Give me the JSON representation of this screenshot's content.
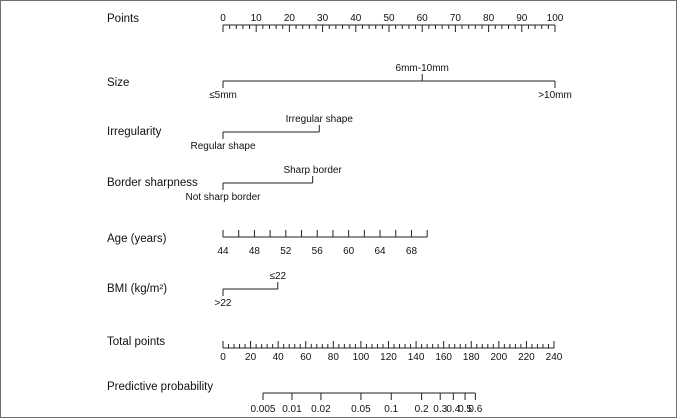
{
  "chart_data": {
    "type": "nomogram",
    "rows": [
      {
        "id": "points",
        "label": "Points",
        "kind": "scale",
        "min": 0,
        "max": 100,
        "major": [
          0,
          10,
          20,
          30,
          40,
          50,
          60,
          70,
          80,
          90,
          100
        ],
        "minor_step": 2
      },
      {
        "id": "size",
        "label": "Size",
        "kind": "categorical",
        "categories": [
          {
            "label": "≤5mm",
            "points": 0,
            "pos": "below"
          },
          {
            "label": "6mm-10mm",
            "points": 60,
            "pos": "above"
          },
          {
            "label": ">10mm",
            "points": 100,
            "pos": "below"
          }
        ]
      },
      {
        "id": "irregularity",
        "label": "Irregularity",
        "kind": "categorical",
        "categories": [
          {
            "label": "Regular shape",
            "points": 0,
            "pos": "below"
          },
          {
            "label": "Irregular shape",
            "points": 29,
            "pos": "above"
          }
        ]
      },
      {
        "id": "border",
        "label": "Border sharpness",
        "kind": "categorical",
        "categories": [
          {
            "label": "Not sharp border",
            "points": 0,
            "pos": "below"
          },
          {
            "label": "Sharp border",
            "points": 27,
            "pos": "above"
          }
        ]
      },
      {
        "id": "age",
        "label": "Age (years)",
        "kind": "scale",
        "labeled": [
          44,
          48,
          52,
          56,
          60,
          64,
          68
        ],
        "ticks_every": 2,
        "min": 44,
        "max": 70,
        "points_at_min": 0,
        "points_at_max": 61.5
      },
      {
        "id": "bmi",
        "label": "BMI (kg/m²)",
        "kind": "categorical",
        "categories": [
          {
            "label": ">22",
            "points": 0,
            "pos": "below"
          },
          {
            "label": "≤22",
            "points": 16.5,
            "pos": "above"
          }
        ]
      },
      {
        "id": "total",
        "label": "Total points",
        "kind": "scale",
        "min": 0,
        "max": 240,
        "major": [
          0,
          20,
          40,
          60,
          80,
          100,
          120,
          140,
          160,
          180,
          200,
          220,
          240
        ],
        "minor_step": 4
      },
      {
        "id": "prob",
        "label": "Predictive probability",
        "kind": "probability",
        "labeled": [
          "0.005",
          "0.01",
          "0.02",
          "0.05",
          "0.1",
          "0.2",
          "0.3",
          "0.4",
          "0.5",
          "0.6"
        ],
        "total_points_at": [
          29,
          50,
          71,
          100,
          122,
          144,
          157.5,
          167,
          175.5,
          183
        ]
      }
    ]
  }
}
